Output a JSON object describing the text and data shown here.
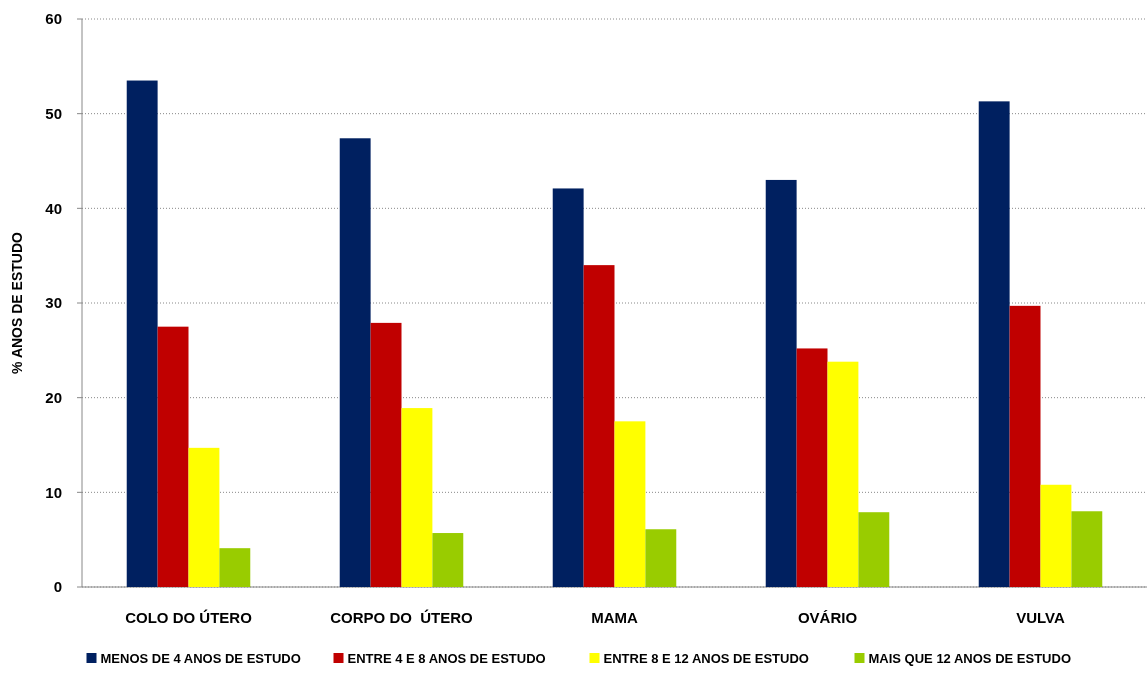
{
  "chart_data": {
    "type": "bar",
    "ylabel": "% ANOS DE ESTUDO",
    "categories": [
      "COLO DO ÚTERO",
      "CORPO DO  ÚTERO",
      "MAMA",
      "OVÁRIO",
      "VULVA"
    ],
    "series": [
      {
        "name": "MENOS DE 4 ANOS DE ESTUDO",
        "color": "#002060",
        "values": [
          53.5,
          47.4,
          42.1,
          43.0,
          51.3
        ]
      },
      {
        "name": "ENTRE 4 E 8 ANOS DE ESTUDO",
        "color": "#c00000",
        "values": [
          27.5,
          27.9,
          34.0,
          25.2,
          29.7
        ]
      },
      {
        "name": "ENTRE 8 E 12 ANOS DE ESTUDO",
        "color": "#ffff00",
        "values": [
          14.7,
          18.9,
          17.5,
          23.8,
          10.8
        ]
      },
      {
        "name": "MAIS QUE 12 ANOS DE ESTUDO",
        "color": "#99cc00",
        "values": [
          4.1,
          5.7,
          6.1,
          7.9,
          8.0
        ]
      }
    ],
    "ylim": [
      0,
      60
    ],
    "yticks": [
      0,
      10,
      20,
      30,
      40,
      50,
      60
    ],
    "grid": "y",
    "legend": "bottom"
  }
}
